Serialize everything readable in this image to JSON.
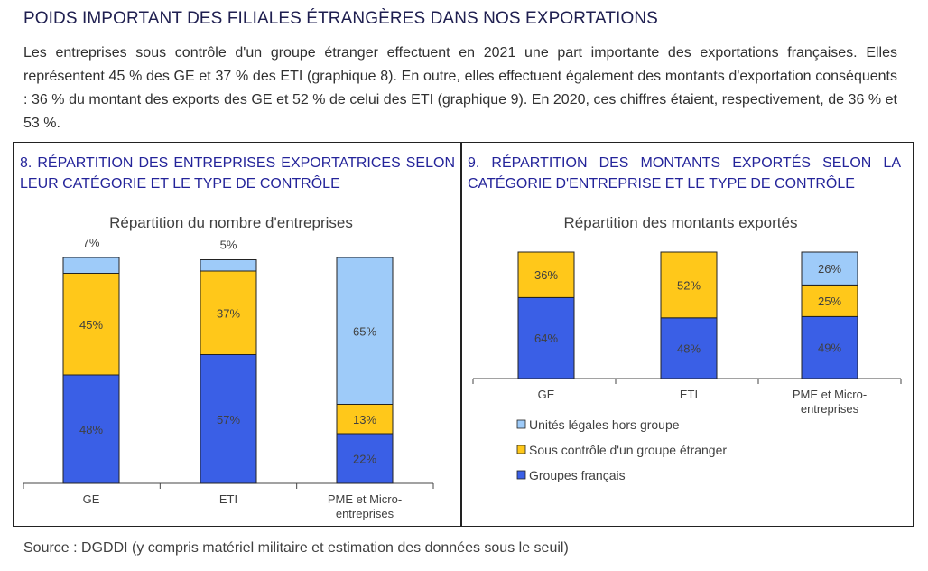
{
  "heading": "POIDS IMPORTANT DES FILIALES ÉTRANGÈRES DANS NOS EXPORTATIONS",
  "intro": "Les entreprises sous contrôle d'un groupe étranger effectuent en 2021 une part importante des exportations françaises. Elles représentent 45 % des GE et 37 % des ETI (graphique 8). En outre, elles effectuent également des montants d'exportation conséquents : 36 % du montant des exports des GE et 52 % de celui des ETI (graphique 9). En 2020, ces chiffres étaient, respectivement, de 36 % et 53 %.",
  "panel8": {
    "title": "8. RÉPARTITION DES ENTREPRISES EXPORTATRICES SELON LEUR CATÉGORIE ET LE TYPE DE CONTRÔLE"
  },
  "panel9": {
    "title": "9. RÉPARTITION DES MONTANTS EXPORTÉS SELON LA CATÉGORIE D'ENTREPRISE ET LE TYPE DE CONTRÔLE"
  },
  "source": "Source : DGDDI (y compris matériel militaire et estimation des données sous le seuil)",
  "colors": {
    "groupes_francais": "#3a5fe6",
    "controle_etranger": "#ffc81a",
    "hors_groupe": "#9ecbf9",
    "text": "#404040"
  },
  "chart_data": [
    {
      "type": "bar",
      "stacked": true,
      "title": "Répartition du nombre d'entreprises",
      "categories": [
        "GE",
        "ETI",
        "PME et Micro-entreprises"
      ],
      "series": [
        {
          "name": "Groupes français",
          "values": [
            48,
            57,
            22
          ],
          "labels": [
            "48%",
            "57%",
            "22%"
          ]
        },
        {
          "name": "Sous contrôle d'un groupe étranger",
          "values": [
            45,
            37,
            13
          ],
          "labels": [
            "45%",
            "37%",
            "13%"
          ]
        },
        {
          "name": "Unités légales hors groupe",
          "values": [
            7,
            5,
            65
          ],
          "labels": [
            "7%",
            "5%",
            "65%"
          ]
        }
      ],
      "ylim": [
        0,
        100
      ],
      "grid": false
    },
    {
      "type": "bar",
      "stacked": true,
      "title": "Répartition des montants exportés",
      "categories": [
        "GE",
        "ETI",
        "PME et Micro-entreprises"
      ],
      "series": [
        {
          "name": "Groupes français",
          "values": [
            64,
            48,
            49
          ],
          "labels": [
            "64%",
            "48%",
            "49%"
          ]
        },
        {
          "name": "Sous contrôle d'un groupe étranger",
          "values": [
            36,
            52,
            25
          ],
          "labels": [
            "36%",
            "52%",
            "25%"
          ]
        },
        {
          "name": "Unités légales hors groupe",
          "values": [
            0,
            0,
            26
          ],
          "labels": [
            "",
            "",
            "26%"
          ]
        }
      ],
      "ylim": [
        0,
        100
      ],
      "grid": false,
      "legend": "bottom"
    }
  ]
}
